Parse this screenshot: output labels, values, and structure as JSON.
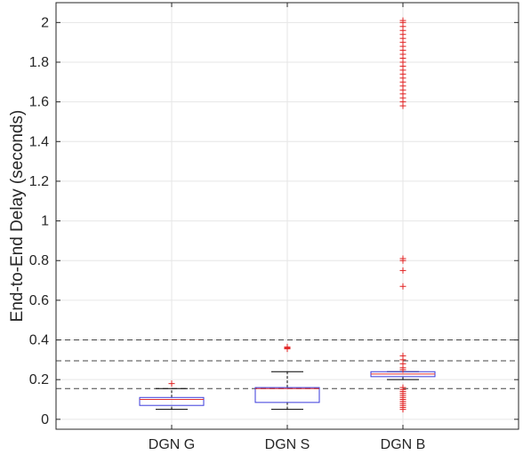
{
  "chart_data": {
    "type": "box",
    "title": "",
    "xlabel": "",
    "ylabel": "End-to-End Delay (seconds)",
    "ylim": [
      -0.05,
      2.1
    ],
    "yticks": [
      0,
      0.2,
      0.4,
      0.6,
      0.8,
      1,
      1.2,
      1.4,
      1.6,
      1.8,
      2
    ],
    "ytick_labels": [
      "0",
      "0.2",
      "0.4",
      "0.6",
      "0.8",
      "1",
      "1.2",
      "1.4",
      "1.6",
      "1.8",
      "2"
    ],
    "grid": true,
    "categories": [
      "DGN G",
      "DGN S",
      "DGN B"
    ],
    "boxes": [
      {
        "name": "DGN G",
        "whisker_low": 0.05,
        "q1": 0.07,
        "median": 0.1,
        "q3": 0.11,
        "whisker_high": 0.155,
        "outliers": [
          0.18
        ]
      },
      {
        "name": "DGN S",
        "whisker_low": 0.05,
        "q1": 0.085,
        "median": 0.155,
        "q3": 0.16,
        "whisker_high": 0.24,
        "outliers": [
          0.355,
          0.36,
          0.365
        ]
      },
      {
        "name": "DGN B",
        "whisker_low": 0.2,
        "q1": 0.215,
        "median": 0.228,
        "q3": 0.24,
        "whisker_high": 0.24,
        "outliers": [
          0.05,
          0.06,
          0.07,
          0.08,
          0.09,
          0.1,
          0.11,
          0.12,
          0.13,
          0.14,
          0.15,
          0.16,
          0.25,
          0.26,
          0.28,
          0.3,
          0.32,
          0.67,
          0.75,
          0.8,
          0.81,
          1.58,
          1.6,
          1.62,
          1.64,
          1.66,
          1.68,
          1.7,
          1.72,
          1.74,
          1.76,
          1.78,
          1.8,
          1.82,
          1.84,
          1.86,
          1.88,
          1.9,
          1.92,
          1.94,
          1.96,
          1.98,
          2.0,
          2.01
        ]
      }
    ],
    "reference_lines": [
      0.155,
      0.295,
      0.4
    ],
    "colors": {
      "box": "#3a3adb",
      "median": "#e03030",
      "outlier": "#e02020",
      "whisker": "#000000",
      "reference": "#444444",
      "grid": "#e6e6e6"
    }
  }
}
